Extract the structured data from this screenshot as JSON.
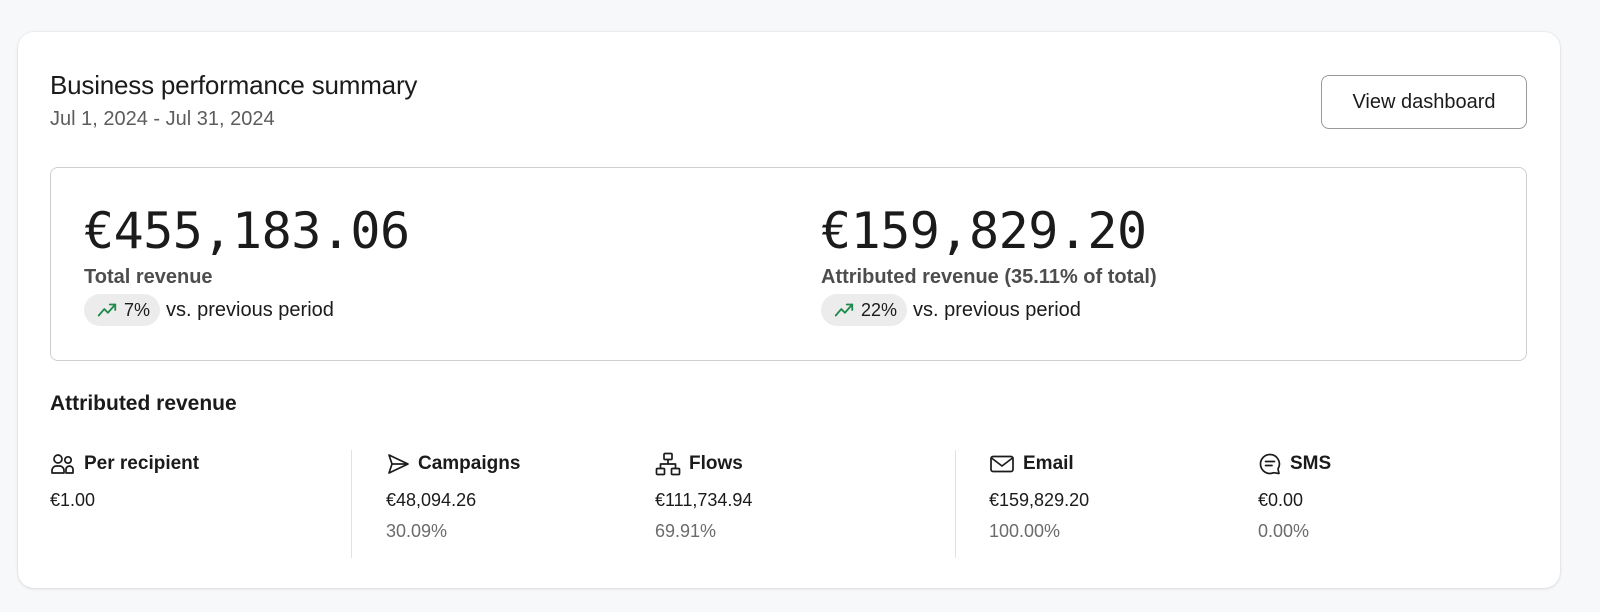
{
  "header": {
    "title": "Business performance summary",
    "date_range": "Jul 1, 2024 - Jul 31, 2024",
    "view_button_label": "View dashboard"
  },
  "summary": {
    "total": {
      "value": "€455,183.06",
      "label": "Total revenue",
      "change": "7%",
      "change_suffix": "vs. previous period",
      "trend_icon": "trend-up-icon"
    },
    "attributed": {
      "value": "€159,829.20",
      "label": "Attributed revenue (35.11% of total)",
      "change": "22%",
      "change_suffix": "vs. previous period",
      "trend_icon": "trend-up-icon"
    }
  },
  "attributed_revenue": {
    "heading": "Attributed revenue",
    "columns": [
      {
        "icon": "people-icon",
        "label": "Per recipient",
        "value": "€1.00",
        "percent": ""
      },
      {
        "icon": "send-icon",
        "label": "Campaigns",
        "value": "€48,094.26",
        "percent": "30.09%"
      },
      {
        "icon": "flow-icon",
        "label": "Flows",
        "value": "€111,734.94",
        "percent": "69.91%"
      },
      {
        "icon": "envelope-icon",
        "label": "Email",
        "value": "€159,829.20",
        "percent": "100.00%"
      },
      {
        "icon": "chat-icon",
        "label": "SMS",
        "value": "€0.00",
        "percent": "0.00%"
      }
    ]
  },
  "colors": {
    "trend_up": "#1f8a4c",
    "card_bg": "#ffffff",
    "page_bg": "#f7f8fa"
  }
}
